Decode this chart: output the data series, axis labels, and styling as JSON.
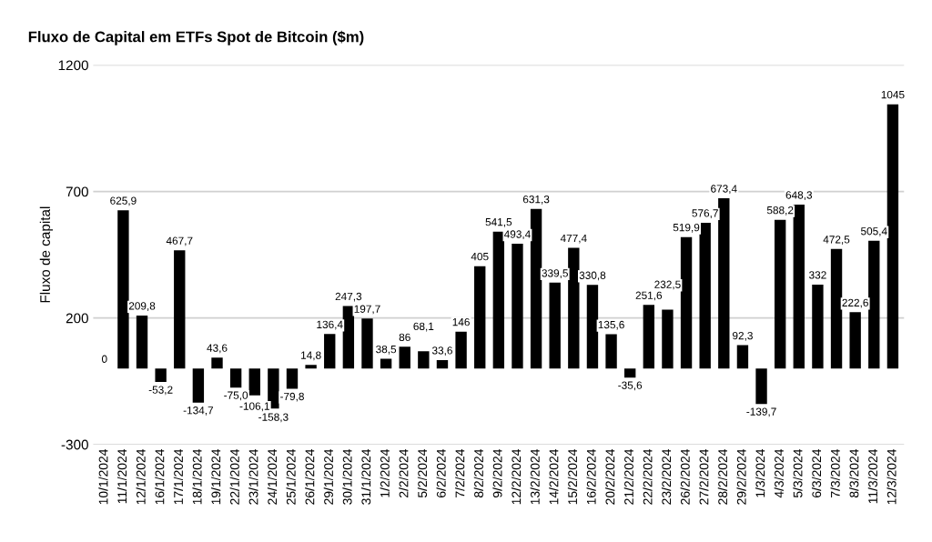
{
  "chart_data": {
    "type": "bar",
    "title": "Fluxo de Capital em ETFs Spot de Bitcoin ($m)",
    "ylabel": "Fluxo de capital",
    "categories": [
      "10/1/2024",
      "11/1/2024",
      "12/1/2024",
      "16/1/2024",
      "17/1/2024",
      "18/1/2024",
      "19/1/2024",
      "22/1/2024",
      "23/1/2024",
      "24/1/2024",
      "25/1/2024",
      "26/1/2024",
      "29/1/2024",
      "30/1/2024",
      "31/1/2024",
      "1/2/2024",
      "2/2/2024",
      "5/2/2024",
      "6/2/2024",
      "7/2/2024",
      "8/2/2024",
      "9/2/2024",
      "12/2/2024",
      "13/2/2024",
      "14/2/2024",
      "15/2/2024",
      "16/2/2024",
      "20/2/2024",
      "21/2/2024",
      "22/2/2024",
      "23/2/2024",
      "26/2/2024",
      "27/2/2024",
      "28/2/2024",
      "29/2/2024",
      "1/3/2024",
      "4/3/2024",
      "5/3/2024",
      "6/3/2024",
      "7/3/2024",
      "8/3/2024",
      "11/3/2024",
      "12/3/2024"
    ],
    "values": [
      0,
      625.9,
      209.8,
      -53.2,
      467.7,
      -134.7,
      43.6,
      -75.0,
      -106.1,
      -158.3,
      -79.8,
      14.8,
      136.4,
      247.3,
      197.7,
      38.5,
      86,
      68.1,
      33.6,
      146,
      405,
      541.5,
      493.4,
      631.3,
      339.5,
      477.4,
      330.8,
      135.6,
      -35.6,
      251.6,
      232.5,
      519.9,
      576.7,
      673.4,
      92.3,
      -139.7,
      588.2,
      648.3,
      332,
      472.5,
      222.6,
      505.4,
      1045
    ],
    "value_labels": [
      "0",
      "625,9",
      "209,8",
      "-53,2",
      "467,7",
      "-134,7",
      "43,6",
      "-75,0",
      "-106,1",
      "-158,3",
      "-79,8",
      "14,8",
      "136,4",
      "247,3",
      "197,7",
      "38,5",
      "86",
      "68,1",
      "33,6",
      "146",
      "405",
      "541,5",
      "493,4",
      "631,3",
      "339,5",
      "477,4",
      "330,8",
      "135,6",
      "-35,6",
      "251,6",
      "232,5",
      "519,9",
      "576,7",
      "673,4",
      "92,3",
      "-139,7",
      "588,2",
      "648,3",
      "332",
      "472,5",
      "222,6",
      "505,4",
      "1045"
    ],
    "color": "#000000",
    "ylim": [
      -300,
      1200
    ],
    "yticks": [
      -300,
      200,
      700,
      1200
    ],
    "grid": "y",
    "legend": false
  }
}
